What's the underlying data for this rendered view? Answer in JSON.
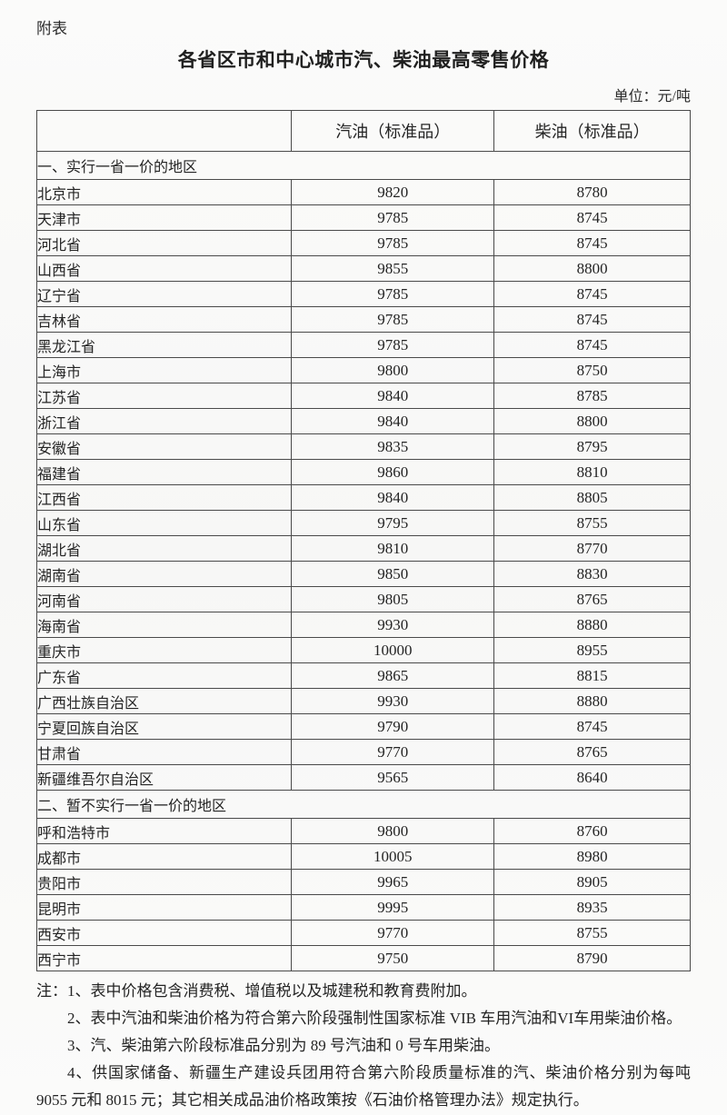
{
  "page": {
    "annex_label": "附表",
    "title": "各省区市和中心城市汽、柴油最高零售价格",
    "unit_label": "单位：元/吨"
  },
  "table": {
    "columns": [
      "",
      "汽油（标准品）",
      "柴油（标准品）"
    ],
    "sections": [
      {
        "heading": "一、实行一省一价的地区",
        "rows": [
          {
            "region": "北京市",
            "gasoline": "9820",
            "diesel": "8780"
          },
          {
            "region": "天津市",
            "gasoline": "9785",
            "diesel": "8745"
          },
          {
            "region": "河北省",
            "gasoline": "9785",
            "diesel": "8745"
          },
          {
            "region": "山西省",
            "gasoline": "9855",
            "diesel": "8800"
          },
          {
            "region": "辽宁省",
            "gasoline": "9785",
            "diesel": "8745"
          },
          {
            "region": "吉林省",
            "gasoline": "9785",
            "diesel": "8745"
          },
          {
            "region": "黑龙江省",
            "gasoline": "9785",
            "diesel": "8745"
          },
          {
            "region": "上海市",
            "gasoline": "9800",
            "diesel": "8750"
          },
          {
            "region": "江苏省",
            "gasoline": "9840",
            "diesel": "8785"
          },
          {
            "region": "浙江省",
            "gasoline": "9840",
            "diesel": "8800"
          },
          {
            "region": "安徽省",
            "gasoline": "9835",
            "diesel": "8795"
          },
          {
            "region": "福建省",
            "gasoline": "9860",
            "diesel": "8810"
          },
          {
            "region": "江西省",
            "gasoline": "9840",
            "diesel": "8805"
          },
          {
            "region": "山东省",
            "gasoline": "9795",
            "diesel": "8755"
          },
          {
            "region": "湖北省",
            "gasoline": "9810",
            "diesel": "8770"
          },
          {
            "region": "湖南省",
            "gasoline": "9850",
            "diesel": "8830"
          },
          {
            "region": "河南省",
            "gasoline": "9805",
            "diesel": "8765"
          },
          {
            "region": "海南省",
            "gasoline": "9930",
            "diesel": "8880"
          },
          {
            "region": "重庆市",
            "gasoline": "10000",
            "diesel": "8955"
          },
          {
            "region": "广东省",
            "gasoline": "9865",
            "diesel": "8815"
          },
          {
            "region": "广西壮族自治区",
            "gasoline": "9930",
            "diesel": "8880"
          },
          {
            "region": "宁夏回族自治区",
            "gasoline": "9790",
            "diesel": "8745"
          },
          {
            "region": "甘肃省",
            "gasoline": "9770",
            "diesel": "8765"
          },
          {
            "region": "新疆维吾尔自治区",
            "gasoline": "9565",
            "diesel": "8640"
          }
        ]
      },
      {
        "heading": "二、暂不实行一省一价的地区",
        "rows": [
          {
            "region": "呼和浩特市",
            "gasoline": "9800",
            "diesel": "8760"
          },
          {
            "region": "成都市",
            "gasoline": "10005",
            "diesel": "8980"
          },
          {
            "region": "贵阳市",
            "gasoline": "9965",
            "diesel": "8905"
          },
          {
            "region": "昆明市",
            "gasoline": "9995",
            "diesel": "8935"
          },
          {
            "region": "西安市",
            "gasoline": "9770",
            "diesel": "8755"
          },
          {
            "region": "西宁市",
            "gasoline": "9750",
            "diesel": "8790"
          }
        ]
      }
    ]
  },
  "notes": [
    "注：1、表中价格包含消费税、增值税以及城建税和教育费附加。",
    "2、表中汽油和柴油价格为符合第六阶段强制性国家标准 VIB 车用汽油和VI车用柴油价格。",
    "3、汽、柴油第六阶段标准品分别为 89 号汽油和 0 号车用柴油。",
    "4、供国家储备、新疆生产建设兵团用符合第六阶段质量标准的汽、柴油价格分别为每吨 9055 元和 8015 元；其它相关成品油价格政策按《石油价格管理办法》规定执行。"
  ],
  "colors": {
    "border": "#4a4a4a",
    "text": "#242424",
    "background": "#f9f9f8"
  }
}
